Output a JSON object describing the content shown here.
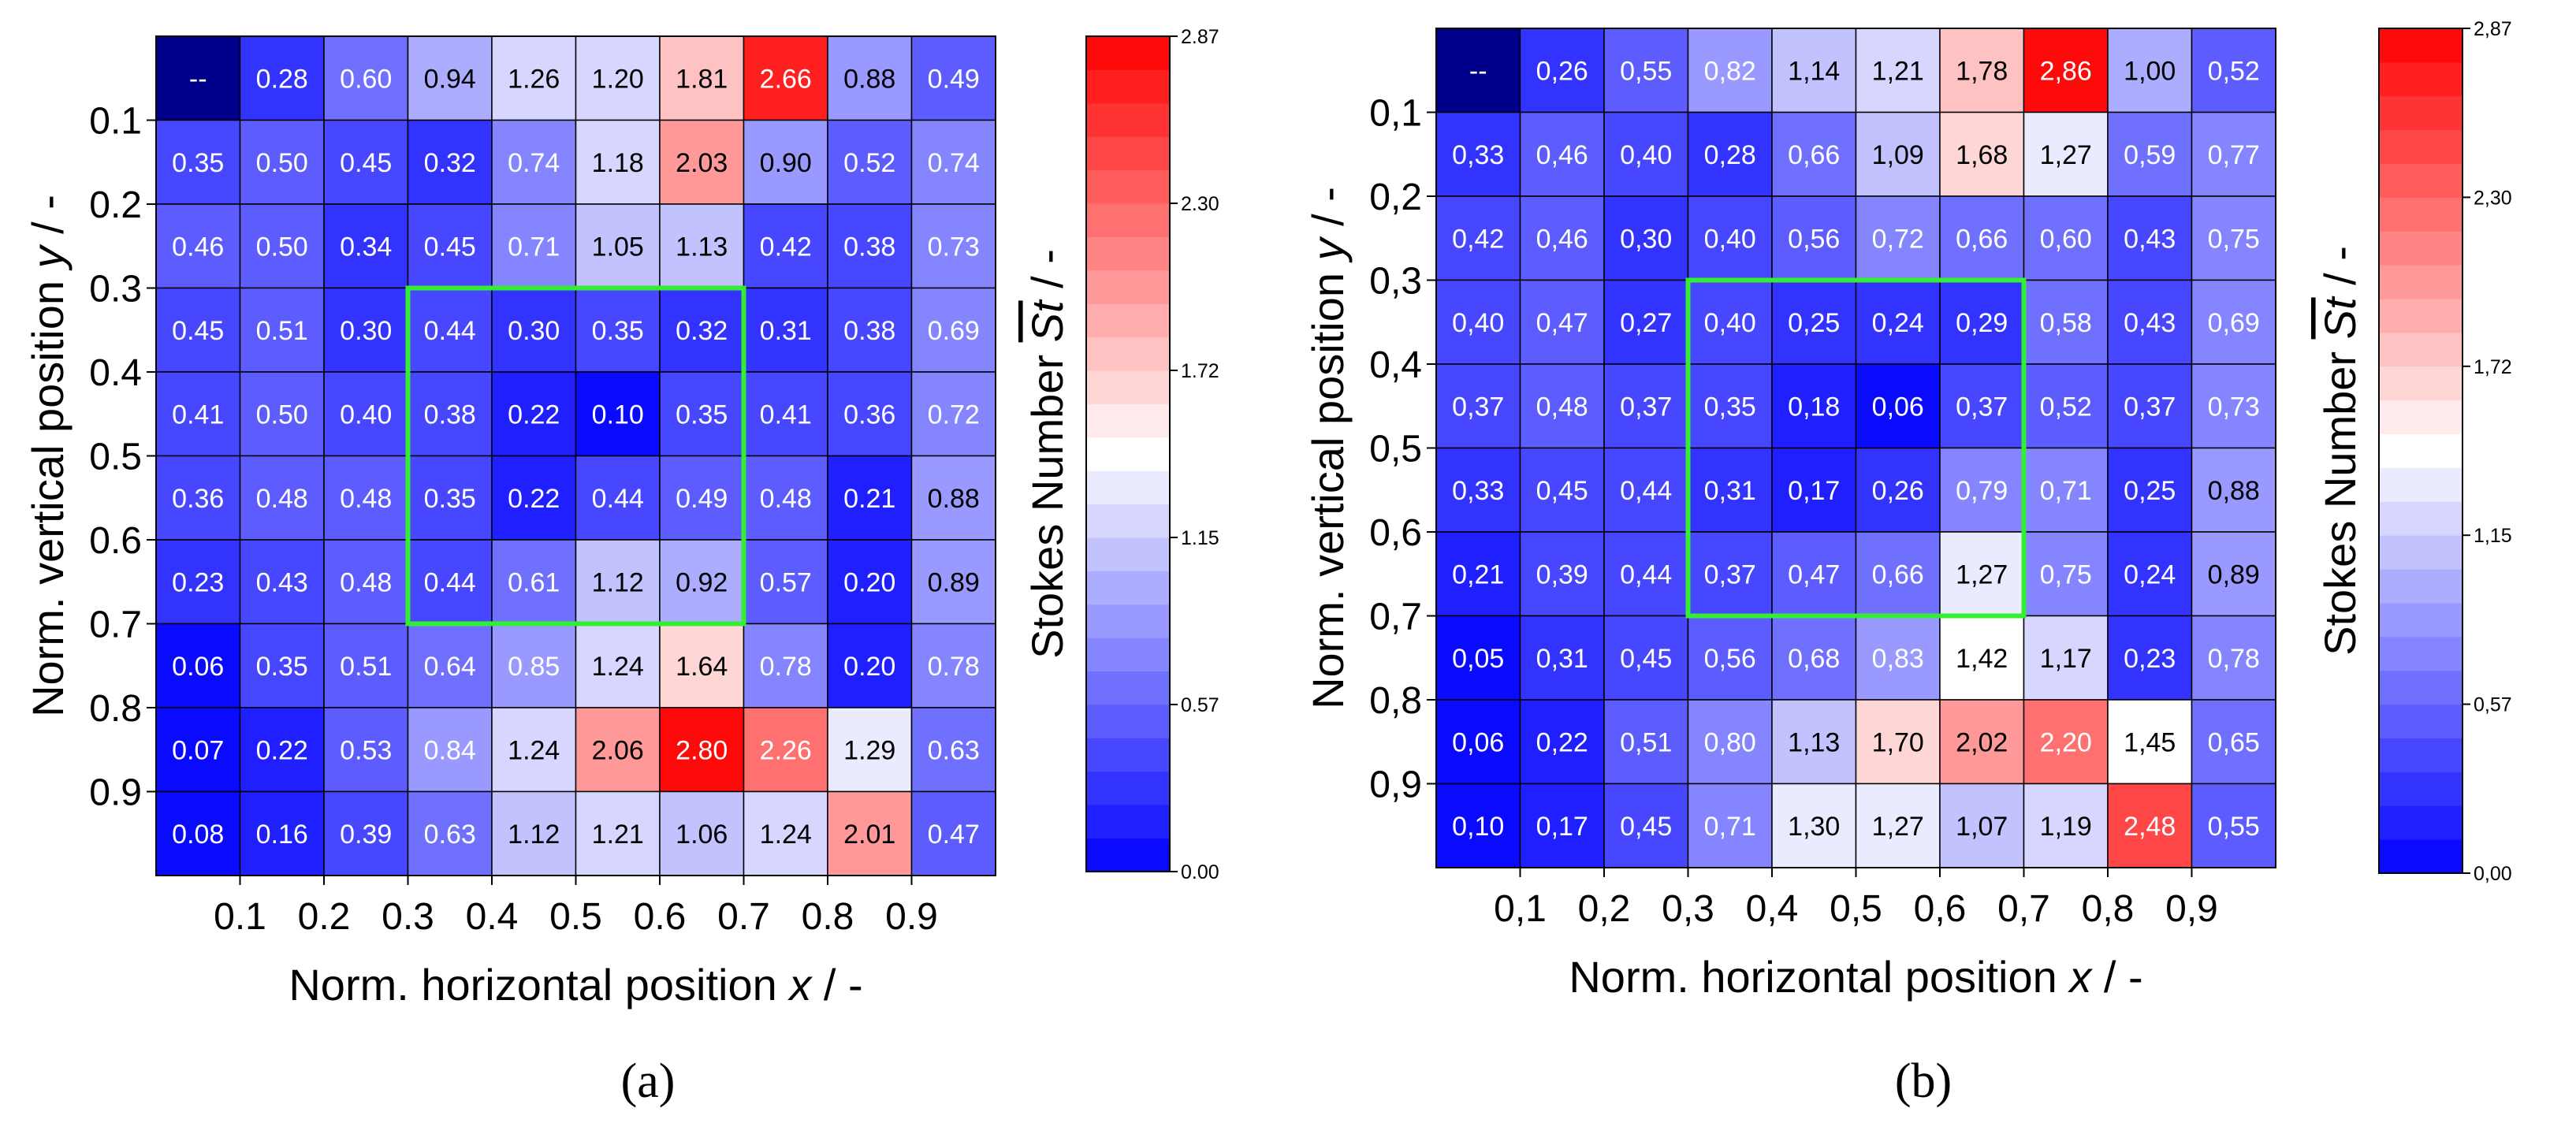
{
  "colors": {
    "low": "#0000ff",
    "mid": "#ffffff",
    "high": "#ff0000",
    "highlight": "#33ee33",
    "missing": "#00008b"
  },
  "chart_data": [
    {
      "type": "heatmap",
      "panel_label": "(a)",
      "missing_text": "--",
      "xlabel_prefix": "Norm. horizontal position ",
      "xlabel_var": "x",
      "xlabel_suffix": " / -",
      "ylabel_prefix": "Norm. vertical position ",
      "ylabel_var": "y",
      "ylabel_suffix": " / -",
      "x_ticks": [
        "0.1",
        "0.2",
        "0.3",
        "0.4",
        "0.5",
        "0.6",
        "0.7",
        "0.8",
        "0.9"
      ],
      "y_ticks": [
        "0.1",
        "0.2",
        "0.3",
        "0.4",
        "0.5",
        "0.6",
        "0.7",
        "0.8",
        "0.9"
      ],
      "colorbar": {
        "label_prefix": "Stokes Number  ",
        "label_symbol": "St",
        "label_suffix": " / -",
        "range": [
          0.0,
          2.87
        ],
        "ticks": [
          "0.00",
          "0.57",
          "1.15",
          "1.72",
          "2.30",
          "2.87"
        ]
      },
      "highlight_region": {
        "x": [
          0.3,
          0.7
        ],
        "y": [
          0.3,
          0.7
        ]
      },
      "values": [
        [
          null,
          0.28,
          0.6,
          0.94,
          1.26,
          1.2,
          1.81,
          2.66,
          0.88,
          0.49
        ],
        [
          0.35,
          0.5,
          0.45,
          0.32,
          0.74,
          1.18,
          2.03,
          0.9,
          0.52,
          0.74
        ],
        [
          0.46,
          0.5,
          0.34,
          0.45,
          0.71,
          1.05,
          1.13,
          0.42,
          0.38,
          0.73
        ],
        [
          0.45,
          0.51,
          0.3,
          0.44,
          0.3,
          0.35,
          0.32,
          0.31,
          0.38,
          0.69
        ],
        [
          0.41,
          0.5,
          0.4,
          0.38,
          0.22,
          0.1,
          0.35,
          0.41,
          0.36,
          0.72
        ],
        [
          0.36,
          0.48,
          0.48,
          0.35,
          0.22,
          0.44,
          0.49,
          0.48,
          0.21,
          0.88
        ],
        [
          0.23,
          0.43,
          0.48,
          0.44,
          0.61,
          1.12,
          0.92,
          0.57,
          0.2,
          0.89
        ],
        [
          0.06,
          0.35,
          0.51,
          0.64,
          0.85,
          1.24,
          1.64,
          0.78,
          0.2,
          0.78
        ],
        [
          0.07,
          0.22,
          0.53,
          0.84,
          1.24,
          2.06,
          2.8,
          2.26,
          1.29,
          0.63
        ],
        [
          0.08,
          0.16,
          0.39,
          0.63,
          1.12,
          1.21,
          1.06,
          1.24,
          2.01,
          0.47
        ]
      ],
      "cell_text": [
        [
          "--",
          "0.28",
          "0.60",
          "0.94",
          "1.26",
          "1.20",
          "1.81",
          "2.66",
          "0.88",
          "0.49"
        ],
        [
          "0.35",
          "0.50",
          "0.45",
          "0.32",
          "0.74",
          "1.18",
          "2.03",
          "0.90",
          "0.52",
          "0.74"
        ],
        [
          "0.46",
          "0.50",
          "0.34",
          "0.45",
          "0.71",
          "1.05",
          "1.13",
          "0.42",
          "0.38",
          "0.73"
        ],
        [
          "0.45",
          "0.51",
          "0.30",
          "0.44",
          "0.30",
          "0.35",
          "0.32",
          "0.31",
          "0.38",
          "0.69"
        ],
        [
          "0.41",
          "0.50",
          "0.40",
          "0.38",
          "0.22",
          "0.10",
          "0.35",
          "0.41",
          "0.36",
          "0.72"
        ],
        [
          "0.36",
          "0.48",
          "0.48",
          "0.35",
          "0.22",
          "0.44",
          "0.49",
          "0.48",
          "0.21",
          "0.88"
        ],
        [
          "0.23",
          "0.43",
          "0.48",
          "0.44",
          "0.61",
          "1.12",
          "0.92",
          "0.57",
          "0.20",
          "0.89"
        ],
        [
          "0.06",
          "0.35",
          "0.51",
          "0.64",
          "0.85",
          "1.24",
          "1.64",
          "0.78",
          "0.20",
          "0.78"
        ],
        [
          "0.07",
          "0.22",
          "0.53",
          "0.84",
          "1.24",
          "2.06",
          "2.80",
          "2.26",
          "1.29",
          "0.63"
        ],
        [
          "0.08",
          "0.16",
          "0.39",
          "0.63",
          "1.12",
          "1.21",
          "1.06",
          "1.24",
          "2.01",
          "0.47"
        ]
      ]
    },
    {
      "type": "heatmap",
      "panel_label": "(b)",
      "missing_text": "--",
      "xlabel_prefix": "Norm. horizontal position ",
      "xlabel_var": "x",
      "xlabel_suffix": " / -",
      "ylabel_prefix": "Norm. vertical position ",
      "ylabel_var": "y",
      "ylabel_suffix": " / -",
      "x_ticks": [
        "0,1",
        "0,2",
        "0,3",
        "0,4",
        "0,5",
        "0,6",
        "0,7",
        "0,8",
        "0,9"
      ],
      "y_ticks": [
        "0,1",
        "0,2",
        "0,3",
        "0,4",
        "0,5",
        "0,6",
        "0,7",
        "0,8",
        "0,9"
      ],
      "colorbar": {
        "label_prefix": "Stokes Number  ",
        "label_symbol": "St",
        "label_suffix": " / -",
        "range": [
          0.0,
          2.87
        ],
        "ticks": [
          "0,00",
          "0,57",
          "1,15",
          "1,72",
          "2,30",
          "2,87"
        ]
      },
      "highlight_region": {
        "x": [
          0.3,
          0.7
        ],
        "y": [
          0.3,
          0.7
        ]
      },
      "values": [
        [
          null,
          0.26,
          0.55,
          0.82,
          1.14,
          1.21,
          1.78,
          2.86,
          1.0,
          0.52
        ],
        [
          0.33,
          0.46,
          0.4,
          0.28,
          0.66,
          1.09,
          1.68,
          1.27,
          0.59,
          0.77
        ],
        [
          0.42,
          0.46,
          0.3,
          0.4,
          0.56,
          0.72,
          0.66,
          0.6,
          0.43,
          0.75
        ],
        [
          0.4,
          0.47,
          0.27,
          0.4,
          0.25,
          0.24,
          0.29,
          0.58,
          0.43,
          0.69
        ],
        [
          0.37,
          0.48,
          0.37,
          0.35,
          0.18,
          0.06,
          0.37,
          0.52,
          0.37,
          0.73
        ],
        [
          0.33,
          0.45,
          0.44,
          0.31,
          0.17,
          0.26,
          0.79,
          0.71,
          0.25,
          0.88
        ],
        [
          0.21,
          0.39,
          0.44,
          0.37,
          0.47,
          0.66,
          1.27,
          0.75,
          0.24,
          0.89
        ],
        [
          0.05,
          0.31,
          0.45,
          0.56,
          0.68,
          0.83,
          1.42,
          1.17,
          0.23,
          0.78
        ],
        [
          0.06,
          0.22,
          0.51,
          0.8,
          1.13,
          1.7,
          2.02,
          2.2,
          1.45,
          0.65
        ],
        [
          0.1,
          0.17,
          0.45,
          0.71,
          1.3,
          1.27,
          1.07,
          1.19,
          2.48,
          0.55
        ]
      ],
      "cell_text": [
        [
          "--",
          "0,26",
          "0,55",
          "0,82",
          "1,14",
          "1,21",
          "1,78",
          "2,86",
          "1,00",
          "0,52"
        ],
        [
          "0,33",
          "0,46",
          "0,40",
          "0,28",
          "0,66",
          "1,09",
          "1,68",
          "1,27",
          "0,59",
          "0,77"
        ],
        [
          "0,42",
          "0,46",
          "0,30",
          "0,40",
          "0,56",
          "0,72",
          "0,66",
          "0,60",
          "0,43",
          "0,75"
        ],
        [
          "0,40",
          "0,47",
          "0,27",
          "0,40",
          "0,25",
          "0,24",
          "0,29",
          "0,58",
          "0,43",
          "0,69"
        ],
        [
          "0,37",
          "0,48",
          "0,37",
          "0,35",
          "0,18",
          "0,06",
          "0,37",
          "0,52",
          "0,37",
          "0,73"
        ],
        [
          "0,33",
          "0,45",
          "0,44",
          "0,31",
          "0,17",
          "0,26",
          "0,79",
          "0,71",
          "0,25",
          "0,88"
        ],
        [
          "0,21",
          "0,39",
          "0,44",
          "0,37",
          "0,47",
          "0,66",
          "1,27",
          "0,75",
          "0,24",
          "0,89"
        ],
        [
          "0,05",
          "0,31",
          "0,45",
          "0,56",
          "0,68",
          "0,83",
          "1,42",
          "1,17",
          "0,23",
          "0,78"
        ],
        [
          "0,06",
          "0,22",
          "0,51",
          "0,80",
          "1,13",
          "1,70",
          "2,02",
          "2,20",
          "1,45",
          "0,65"
        ],
        [
          "0,10",
          "0,17",
          "0,45",
          "0,71",
          "1,30",
          "1,27",
          "1,07",
          "1,19",
          "2,48",
          "0,55"
        ]
      ]
    }
  ]
}
